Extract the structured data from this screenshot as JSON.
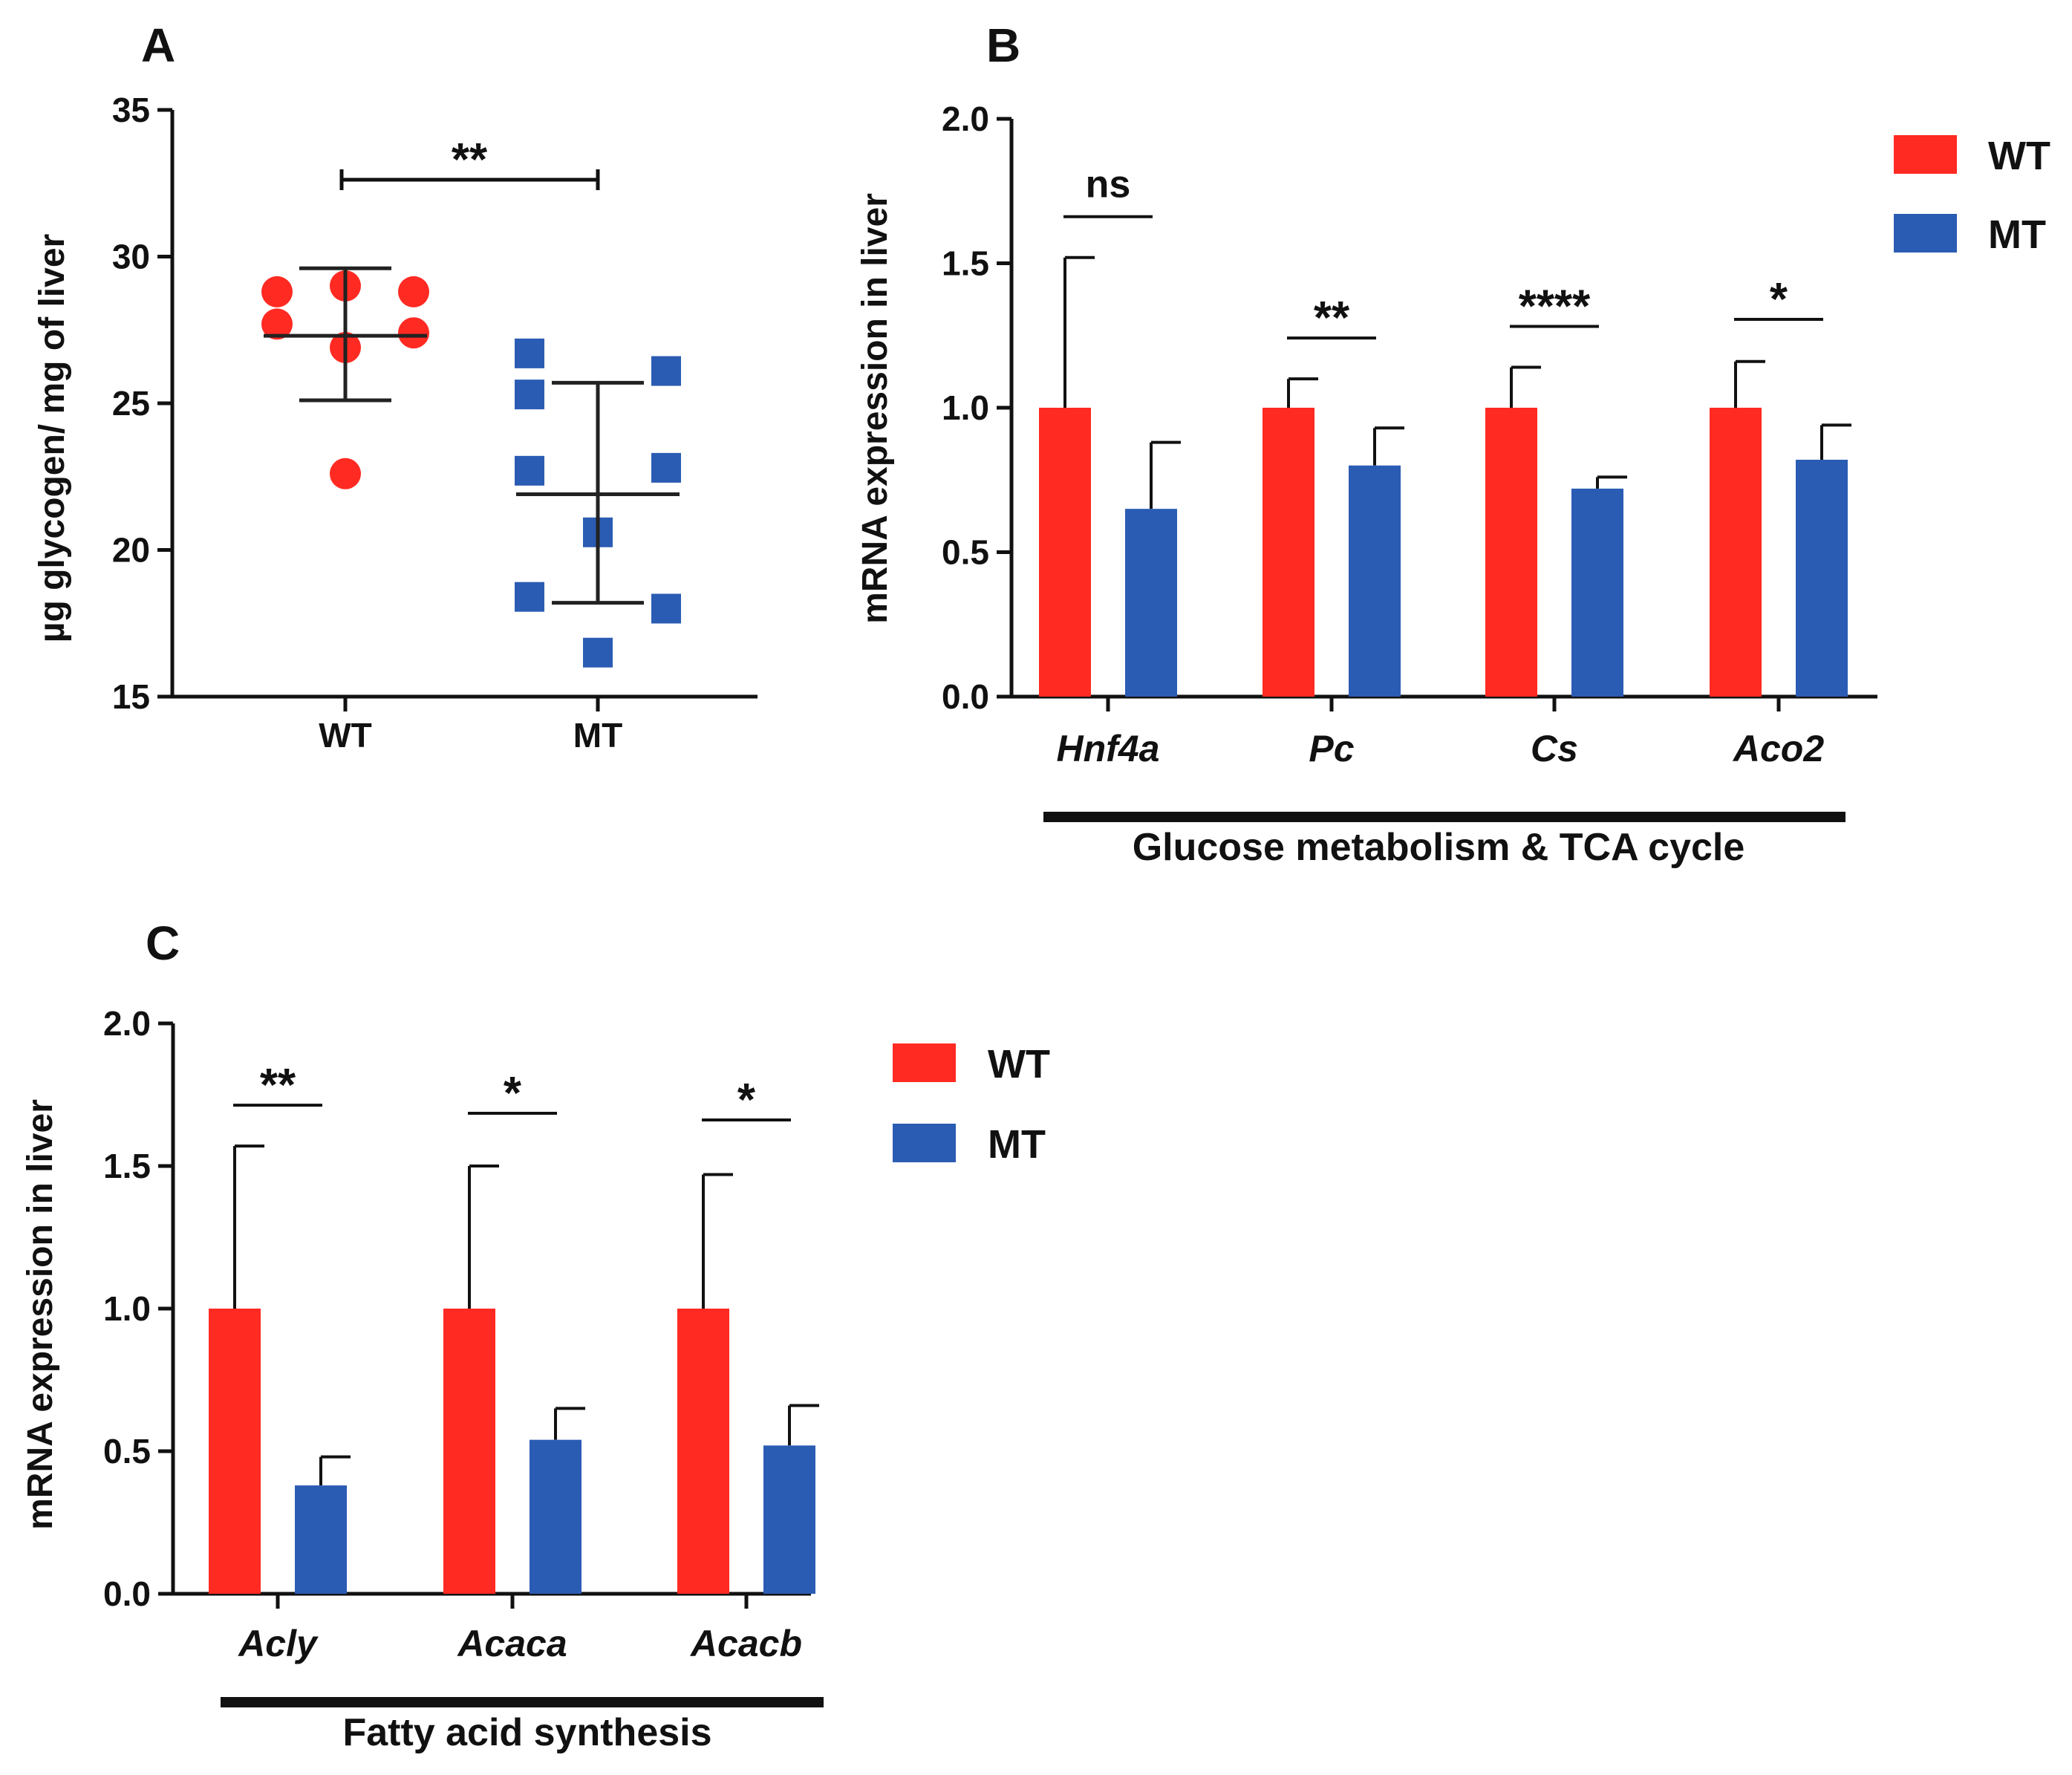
{
  "figure": {
    "panel_letters": [
      "A",
      "B",
      "C"
    ]
  },
  "colors": {
    "wt": "#ff2a22",
    "mt": "#2b5cb3",
    "axis": "#111111",
    "mean_line": "#222222"
  },
  "legend": [
    {
      "label": "WT",
      "color": "#ff2a22"
    },
    {
      "label": "MT",
      "color": "#2b5cb3"
    }
  ],
  "chart_data": [
    {
      "panel": "A",
      "type": "scatter",
      "title": "",
      "xlabel": "",
      "ylabel": "µg glycogen/ mg of liver",
      "ylim": [
        15,
        35
      ],
      "yticks": [
        15,
        20,
        25,
        30,
        35
      ],
      "categories": [
        "WT",
        "MT"
      ],
      "series": [
        {
          "name": "WT",
          "color": "#ff2a22",
          "marker": "circle",
          "points": [
            {
              "jitter": -1,
              "y": 28.8
            },
            {
              "jitter": 0,
              "y": 29.0
            },
            {
              "jitter": 1,
              "y": 28.8
            },
            {
              "jitter": -1,
              "y": 27.7
            },
            {
              "jitter": 0,
              "y": 26.9
            },
            {
              "jitter": 1,
              "y": 27.4
            },
            {
              "jitter": 0,
              "y": 22.6
            }
          ],
          "mean": 27.3,
          "sd_low": 25.1,
          "sd_high": 29.6
        },
        {
          "name": "MT",
          "color": "#2b5cb3",
          "marker": "square",
          "points": [
            {
              "jitter": -1,
              "y": 26.7
            },
            {
              "jitter": 1,
              "y": 26.1
            },
            {
              "jitter": -1,
              "y": 25.3
            },
            {
              "jitter": -1,
              "y": 22.7
            },
            {
              "jitter": 1,
              "y": 22.8
            },
            {
              "jitter": 0,
              "y": 20.6
            },
            {
              "jitter": -1,
              "y": 18.4
            },
            {
              "jitter": 1,
              "y": 18.0
            },
            {
              "jitter": 0,
              "y": 16.5
            }
          ],
          "mean": 21.9,
          "sd_low": 18.2,
          "sd_high": 25.7
        }
      ],
      "significance": [
        {
          "from": "WT",
          "to": "MT",
          "label": "**"
        }
      ]
    },
    {
      "panel": "B",
      "type": "bar",
      "title": "",
      "xlabel": "Glucose metabolism & TCA cycle",
      "ylabel": "mRNA expression in liver",
      "ylim": [
        0,
        2.0
      ],
      "yticks": [
        "0.0",
        "0.5",
        "1.0",
        "1.5",
        "2.0"
      ],
      "categories": [
        "Hnf4a",
        "Pc",
        "Cs",
        "Aco2"
      ],
      "series": [
        {
          "name": "WT",
          "color": "#ff2a22",
          "values": [
            1.0,
            1.0,
            1.0,
            1.0
          ],
          "errors": [
            0.52,
            0.1,
            0.14,
            0.16
          ]
        },
        {
          "name": "MT",
          "color": "#2b5cb3",
          "values": [
            0.65,
            0.8,
            0.72,
            0.82
          ],
          "errors": [
            0.23,
            0.13,
            0.04,
            0.12
          ]
        }
      ],
      "significance": [
        "ns",
        "**",
        "****",
        "*"
      ]
    },
    {
      "panel": "C",
      "type": "bar",
      "title": "",
      "xlabel": "Fatty acid synthesis",
      "ylabel": "mRNA expression in liver",
      "ylim": [
        0,
        2.0
      ],
      "yticks": [
        "0.0",
        "0.5",
        "1.0",
        "1.5",
        "2.0"
      ],
      "categories": [
        "Acly",
        "Acaca",
        "Acacb"
      ],
      "series": [
        {
          "name": "WT",
          "color": "#ff2a22",
          "values": [
            1.0,
            1.0,
            1.0
          ],
          "errors": [
            0.57,
            0.5,
            0.47
          ]
        },
        {
          "name": "MT",
          "color": "#2b5cb3",
          "values": [
            0.38,
            0.54,
            0.52
          ],
          "errors": [
            0.1,
            0.11,
            0.14
          ]
        }
      ],
      "significance": [
        "**",
        "*",
        "*"
      ]
    }
  ]
}
